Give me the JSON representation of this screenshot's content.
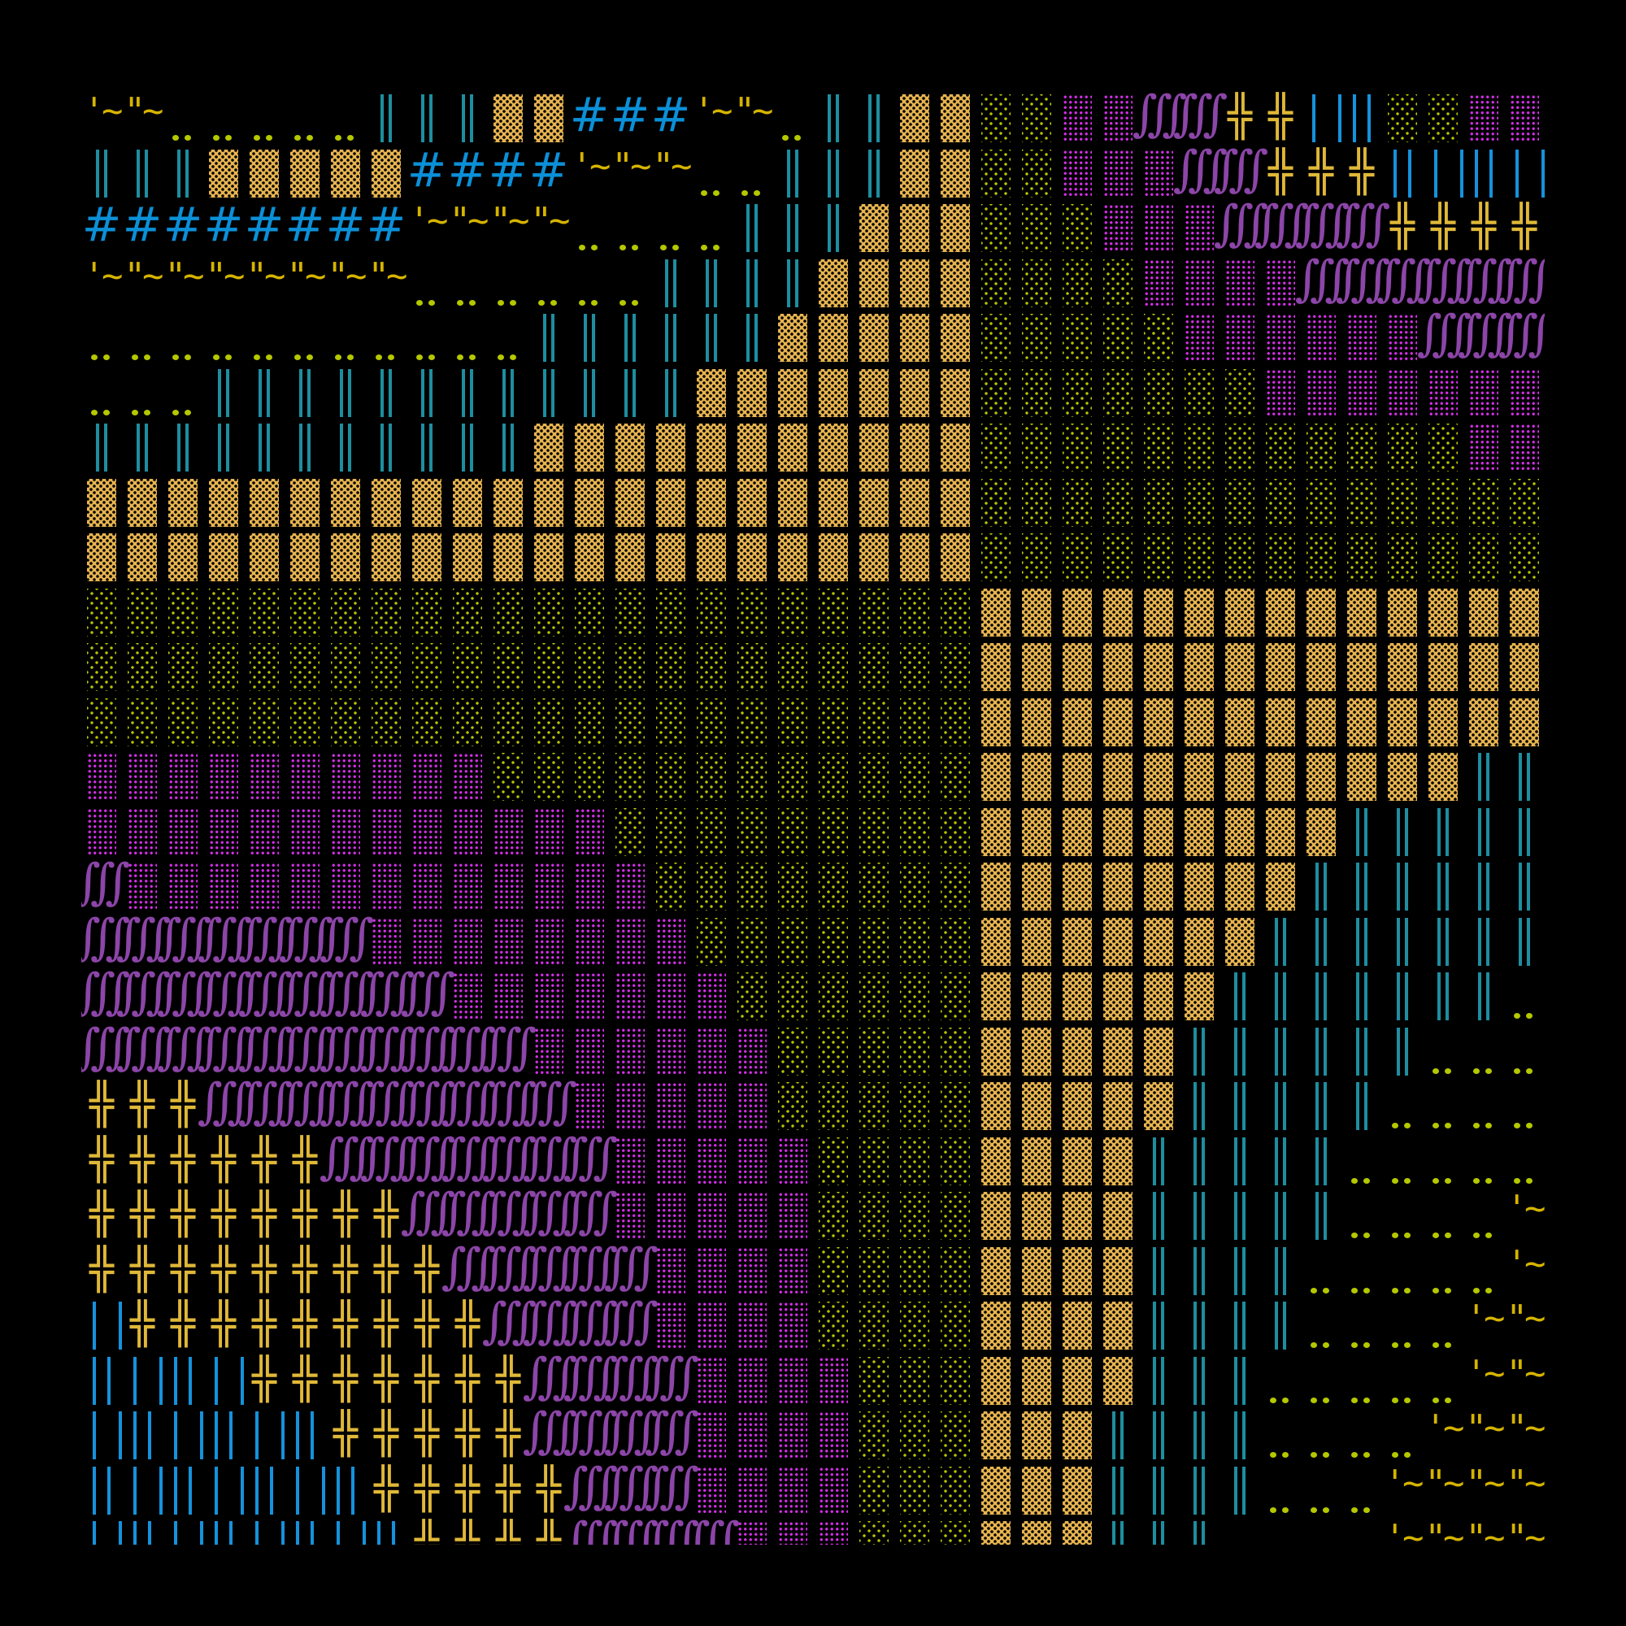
{
  "palette": {
    "background": "#000000",
    "tan_block": "#e7b450",
    "teal_double_bar": "#1d8ea0",
    "lime_dots": "#b5c800",
    "lime_stipple": "#b7c400",
    "magenta_stipple": "#d22ee6",
    "purple_integral": "#8c45a8",
    "yellow_cross": "#e0b838",
    "blue_bars": "#1592dc",
    "blue_hash": "#0b90d8",
    "yellow_tilde": "#d6b400"
  },
  "glyphs": {
    "T": {
      "name": "tan-dotted-block",
      "icon": "dotted-block-icon"
    },
    "V": {
      "name": "teal-double-bar",
      "icon": "double-bar-icon"
    },
    "D": {
      "name": "lime-two-dots",
      "icon": "two-dot-leader-icon"
    },
    "G": {
      "name": "lime-stipple",
      "icon": "sparse-stipple-icon"
    },
    "M": {
      "name": "magenta-stipple",
      "icon": "dense-stipple-icon"
    },
    "P": {
      "name": "purple-triple-integral",
      "char": "∫∫∫"
    },
    "Y": {
      "name": "yellow-double-cross",
      "char": "╬"
    },
    "B": {
      "name": "blue-bars",
      "icon": "vertical-bars-icon"
    },
    "H": {
      "name": "blue-hash",
      "char": "#"
    },
    "W": {
      "name": "yellow-tilde",
      "char_first": "'~",
      "char_next": "\"~"
    }
  },
  "rows": [
    "WWDDDDDVVVTTHHHWWDVVTTGGMMPPYYBBGGMM",
    "VVVTTTTTHHHHWWWDDVVVTTGGMMMPPYYYBBBB",
    "HHHHHHHHWWWWDDDDVVVTTTGGGMMMPPPPYYYY",
    "WWWWWWWWDDDDDDVVVVTTTTGGGGMMMMPPPPPP",
    "DDDDDDDDDDDVVVVVVTTTTTGGGGGMMMMMMPPP",
    "DDDVVVVVVVVVVVVTTTTTTTGGGGGGGMMMMMMM",
    "VVVVVVVVVVVTTTTTTTTTTTGGGGGGGGGGGGMM",
    "TTTTTTTTTTTTTTTTTTTTTTGGGGGGGGGGGGGG",
    "TTTTTTTTTTTTTTTTTTTTTTGGGGGGGGGGGGGG",
    "GGGGGGGGGGGGGGGGGGGGGGTTTTTTTTTTTTTT",
    "GGGGGGGGGGGGGGGGGGGGGGTTTTTTTTTTTTTT",
    "GGGGGGGGGGGGGGGGGGGGGGTTTTTTTTTTTTTT",
    "MMMMMMMMMMGGGGGGGGGGGGTTTTTTTTTTTTVV",
    "MMMMMMMMMMMMMGGGGGGGGGTTTTTTTTTVVVVV",
    "PMMMMMMMMMMMMMGGGGGGGGTTTTTTTTVVVVVV",
    "PPPPPPPMMMMMMMMGGGGGGGTTTTTTTVVVVVVV",
    "PPPPPPPPPMMMMMMMGGGGGGTTTTTTVVVVVVVD",
    "PPPPPPPPPPPMMMMMMGGGGGTTTTTVVVVVVDDD",
    "YYYPPPPPPPPPMMMMMGGGGGTTTTTVVVVVDDDD",
    "YYYYYYPPPPPPPMMMMMGGGGTTTTVVVVVDDDDD",
    "YYYYYYYYPPPPPMMMMMGGGGTTTTVVVVVDDDDW",
    "YYYYYYYYYPPPPPMMMMGGGGTTTTVVVVDDDDDW",
    "BYYYYYYYYYPPPPMMMMGGGGTTTTVVVVDDDDWW",
    "BBBBYYYYYYYPPPPMMMMGGGTTTTVVVDDDDDWW",
    "BBBBBBYYYYYPPPPMMMMGGGTTTVVVVDDDDWWW",
    "BBBBBBBYYYYYPPPMMMMGGGTTTVVVVDDDWWWW",
    "BBBBBBBBYYYYPPPPMMMGGGTTTVVV....WWWW"
  ]
}
